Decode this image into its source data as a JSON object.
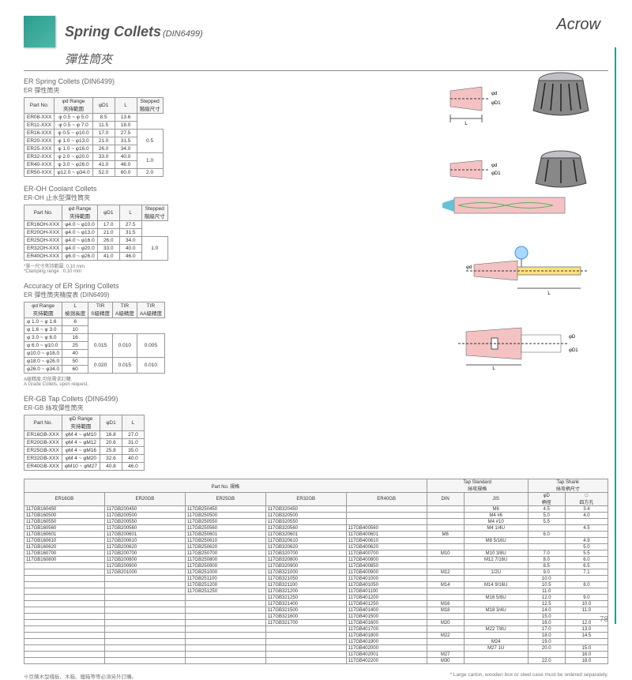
{
  "brand": "Acrow",
  "title_en": "Spring Collets",
  "title_sub": "(DIN6499)",
  "title_zh": "彈性筒夾",
  "pagenum": "78",
  "footnote_zh": "※巨積木型棧板、木箱、鐵箱等等必須另外訂購。",
  "footnote_en": "* Large carton, wooden box or steel case must be ordered separately.",
  "sec1": {
    "title_en": "ER Spring Collets (DIN6499)",
    "title_zh": "ER 彈性筒夾",
    "headers": [
      "Part No.",
      "φd Range\n夾持範圍",
      "φD1",
      "L",
      "Stepped\n階級尺寸"
    ],
    "rows": [
      [
        "ER08-XXX",
        "φ 0.5 ~ φ 5.0",
        "8.5",
        "13.6",
        ""
      ],
      [
        "ER11-XXX",
        "φ 0.5 ~ φ 7.0",
        "11.5",
        "18.0",
        ""
      ],
      [
        "ER16-XXX",
        "φ 0.5 ~ φ10.0",
        "17.0",
        "27.5",
        "0.5"
      ],
      [
        "ER20-XXX",
        "φ 1.0 ~ φ13.0",
        "21.0",
        "31.5",
        ""
      ],
      [
        "ER25-XXX",
        "φ 1.0 ~ φ16.0",
        "26.0",
        "34.0",
        ""
      ],
      [
        "ER32-XXX",
        "φ 2.0 ~ φ20.0",
        "33.0",
        "40.0",
        "1.0"
      ],
      [
        "ER40-XXX",
        "φ 3.0 ~ φ26.0",
        "41.0",
        "46.0",
        ""
      ],
      [
        "ER50-XXX",
        "φ12.0 ~ φ34.0",
        "52.0",
        "60.0",
        "2.0"
      ]
    ],
    "merge": {
      "0": 3,
      "3": 3,
      "7": 1
    }
  },
  "sec2": {
    "title_en": "ER-OH Coolant Collets",
    "title_zh": "ER-OH 止水型彈性筒夾",
    "headers": [
      "Part No.",
      "φd Range\n夾持範圍",
      "φD1",
      "L",
      "Stepped\n階級尺寸"
    ],
    "rows": [
      [
        "ER16OH-XXX",
        "φ4.0 ~ φ10.0",
        "17.0",
        "27.5",
        ""
      ],
      [
        "ER20OH-XXX",
        "φ4.0 ~ φ13.0",
        "21.0",
        "31.5",
        ""
      ],
      [
        "ER25OH-XXX",
        "φ4.0 ~ φ16.0",
        "26.0",
        "34.0",
        "1.0"
      ],
      [
        "ER32OH-XXX",
        "φ4.0 ~ φ20.0",
        "33.0",
        "40.0",
        ""
      ],
      [
        "ER40OH-XXX",
        "φ6.0 ~ φ26.0",
        "41.0",
        "46.0",
        ""
      ]
    ],
    "note_zh": "*單一尺寸夾持範圍: 0.10 mm\n*Clamping range : 0.10 mm"
  },
  "sec3": {
    "title_en": "Accuracy of ER Spring Collets",
    "title_zh": "ER 彈性筒夾精度表 (DIN6499)",
    "headers": [
      "φd Range\n夾持範圍",
      "L\n檢測長度",
      "TIR\nS級精度",
      "TIR\nA級精度",
      "TIR\nAA級精度"
    ],
    "rows": [
      [
        "φ 1.0 ~ φ 1.6",
        "6",
        "",
        "",
        ""
      ],
      [
        "φ 1.6 ~ φ 3.0",
        "10",
        "",
        "",
        ""
      ],
      [
        "φ 3.0 ~ φ 6.0",
        "16",
        "0.015",
        "0.010",
        "0.005"
      ],
      [
        "φ 6.0 ~ φ10.0",
        "25",
        "",
        "",
        ""
      ],
      [
        "φ10.0 ~ φ18.0",
        "40",
        "",
        "",
        ""
      ],
      [
        "φ18.0 ~ φ26.0",
        "50",
        "0.020",
        "0.015",
        "0.010"
      ],
      [
        "φ26.0 ~ φ34.0",
        "60",
        "",
        "",
        ""
      ]
    ],
    "note": "A級精度,可依需求訂購.\nA Grade Collets, upon request."
  },
  "sec4": {
    "title_en": "ER-GB  Tap Collets (DIN6499)",
    "title_zh": "ER-GB 絲攻彈性筒夾",
    "headers": [
      "Part No.",
      "φD Range\n夾持範圍",
      "φD1",
      "L"
    ],
    "rows": [
      [
        "ER16GB-XXX",
        "φM 4 ~ φM10",
        "16.8",
        "27.0"
      ],
      [
        "ER20GB-XXX",
        "φM 4 ~ φM12",
        "20.6",
        "31.0"
      ],
      [
        "ER25GB-XXX",
        "φM 4 ~ φM16",
        "25.8",
        "35.0"
      ],
      [
        "ER32GB-XXX",
        "φM 4 ~ φM20",
        "32.6",
        "40.0"
      ],
      [
        "ER40GB-XXX",
        "φM10 ~ φM27",
        "40.8",
        "46.0"
      ]
    ]
  },
  "bigtable": {
    "group_headers": [
      "Part No. 規格",
      "Tap Standard\n絲攻規格",
      "Tap Shank\n絲攻柄尺寸"
    ],
    "headers": [
      "ER16GB",
      "ER20GB",
      "ER25GB",
      "ER32GB",
      "ER40GB",
      "DIN",
      "JIS",
      "φD\n柄徑",
      "□\n四方孔"
    ],
    "rows": [
      [
        "117GB160450",
        "117GB200450",
        "117GB250450",
        "117GB320450",
        "",
        "",
        "M6",
        "4.5",
        "3.4"
      ],
      [
        "117GB160500",
        "117GB200500",
        "117GB250500",
        "117GB320500",
        "",
        "",
        "M4 #6",
        "5.0",
        "4.0"
      ],
      [
        "117GB160550",
        "117GB200550",
        "117GB250550",
        "117GB320550",
        "",
        "",
        "M4 #10",
        "5.5",
        ""
      ],
      [
        "117GB160560",
        "117GB200560",
        "117GB250560",
        "117GB320560",
        "117GB400560",
        "",
        "M4 1/4U",
        "",
        "4.5"
      ],
      [
        "117GB160601",
        "117GB200601",
        "117GB250601",
        "117GB320601",
        "117GB400601",
        "M6",
        "",
        "6.0",
        ""
      ],
      [
        "117GB160610",
        "117GB200610",
        "117GB250610",
        "117GB320610",
        "117GB400610",
        "",
        "M8 5/16U",
        "",
        "4.9"
      ],
      [
        "117GB160620",
        "117GB200620",
        "117GB250620",
        "117GB320620",
        "117GB400620",
        "",
        "",
        "",
        "5.0"
      ],
      [
        "117GB160700",
        "117GB200700",
        "117GB250700",
        "117GB320700",
        "117GB400700",
        "M10",
        "M10 3/8U",
        "7.0",
        "5.5"
      ],
      [
        "117GB160800",
        "117GB200800",
        "117GB250800",
        "117GB320800",
        "117GB400800",
        "",
        "M12 7/16U",
        "8.0",
        "6.0"
      ],
      [
        "",
        "117GB200900",
        "117GB250900",
        "117GB320900",
        "117GB400850",
        "",
        "",
        "8.5",
        "6.5"
      ],
      [
        "",
        "117GB201000",
        "117GB251000",
        "117GB321000",
        "117GB400900",
        "M12",
        "1/2U",
        "9.0",
        "7.1"
      ],
      [
        "",
        "",
        "117GB251100",
        "117GB321050",
        "117GB401000",
        "",
        "",
        "10.0",
        ""
      ],
      [
        "",
        "",
        "117GB251200",
        "117GB321100",
        "117GB401050",
        "M14",
        "M14 9/16U",
        "10.5",
        "8.0"
      ],
      [
        "",
        "",
        "117GB251250",
        "117GB321200",
        "117GB401100",
        "",
        "",
        "11.0",
        ""
      ],
      [
        "",
        "",
        "",
        "117GB321250",
        "117GB401200",
        "",
        "M16 5/8U",
        "12.0",
        "9.0"
      ],
      [
        "",
        "",
        "",
        "117GB321400",
        "117GB401250",
        "M16",
        "",
        "12.5",
        "10.0"
      ],
      [
        "",
        "",
        "",
        "117GB321500",
        "117GB401400",
        "M18",
        "M18 3/4U",
        "14.0",
        "11.0"
      ],
      [
        "",
        "",
        "",
        "117GB321600",
        "117GB401500",
        "",
        "",
        "15.0",
        ""
      ],
      [
        "",
        "",
        "",
        "117GB321700",
        "117GB401600",
        "M20",
        "",
        "16.0",
        "12.0"
      ],
      [
        "",
        "",
        "",
        "",
        "117GB401700",
        "",
        "M22 7/8U",
        "17.0",
        "13.0"
      ],
      [
        "",
        "",
        "",
        "",
        "117GB401800",
        "M22",
        "",
        "18.0",
        "14.5"
      ],
      [
        "",
        "",
        "",
        "",
        "117GB401900",
        "",
        "M24",
        "19.0",
        ""
      ],
      [
        "",
        "",
        "",
        "",
        "117GB402000",
        "",
        "M27 1U",
        "20.0",
        "15.0"
      ],
      [
        "",
        "",
        "",
        "",
        "117GB402001",
        "M27",
        "",
        "",
        "16.0"
      ],
      [
        "",
        "",
        "",
        "",
        "117GB402200",
        "M30",
        "",
        "22.0",
        "18.0"
      ]
    ]
  }
}
